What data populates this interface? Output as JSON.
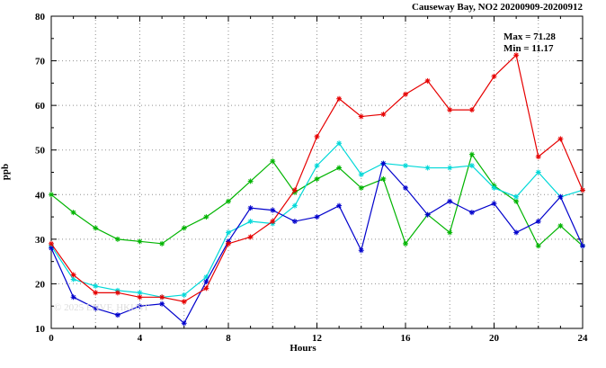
{
  "chart": {
    "title": "Causeway Bay, NO2 20200909-20200912",
    "annotation": {
      "max": "Max = 71.28",
      "min": "Min = 11.17"
    },
    "ylabel": "ppb",
    "xlabel": "Hours",
    "watermark": "© 2025 ENVF, HKUST"
  },
  "chart_data": {
    "type": "line",
    "title": "Causeway Bay, NO2 20200909-20200912",
    "xlabel": "Hours",
    "ylabel": "ppb",
    "xlim": [
      0,
      24
    ],
    "ylim": [
      10,
      80
    ],
    "xticks": [
      0,
      4,
      8,
      12,
      16,
      20,
      24
    ],
    "yticks": [
      10,
      20,
      30,
      40,
      50,
      60,
      70,
      80
    ],
    "minor_x_step": 1,
    "minor_y_step": 5,
    "grid": {
      "x_step": 2,
      "y_step": 10,
      "style": "dotted",
      "color": "#909090"
    },
    "max_value": 71.28,
    "min_value": 11.17,
    "x": [
      0,
      1,
      2,
      3,
      4,
      5,
      6,
      7,
      8,
      9,
      10,
      11,
      12,
      13,
      14,
      15,
      16,
      17,
      18,
      19,
      20,
      21,
      22,
      23,
      24
    ],
    "series": [
      {
        "name": "green-series",
        "color": "#00b400",
        "values": [
          40,
          36,
          32.5,
          30,
          29.5,
          29,
          32.5,
          35,
          38.5,
          43,
          47.5,
          40.5,
          43.5,
          46,
          41.5,
          43.5,
          29,
          35.5,
          31.5,
          49,
          42,
          38.5,
          28.5,
          33,
          28.5
        ]
      },
      {
        "name": "cyan-series",
        "color": "#00d8d8",
        "values": [
          28.5,
          21,
          19.5,
          18.5,
          18,
          17,
          17.5,
          21.5,
          31.5,
          34,
          33.5,
          37.5,
          46.5,
          51.5,
          44.5,
          47,
          46.5,
          46,
          46,
          46.5,
          41.5,
          39.5,
          45,
          39.5,
          41
        ]
      },
      {
        "name": "blue-series",
        "color": "#0000cc",
        "values": [
          28,
          17,
          14.5,
          13,
          15,
          15.5,
          11.17,
          20.5,
          29.5,
          37,
          36.5,
          34,
          35,
          37.5,
          27.5,
          47,
          41.5,
          35.5,
          38.5,
          36,
          38,
          31.5,
          34,
          39.5,
          28.5
        ]
      },
      {
        "name": "red-series",
        "color": "#e60000",
        "values": [
          29,
          22,
          18,
          18,
          17,
          17,
          16,
          19,
          29,
          30.5,
          34,
          41,
          53,
          61.5,
          57.5,
          58,
          62.5,
          65.5,
          59,
          59,
          66.5,
          71.28,
          48.5,
          52.5,
          41
        ]
      }
    ]
  }
}
